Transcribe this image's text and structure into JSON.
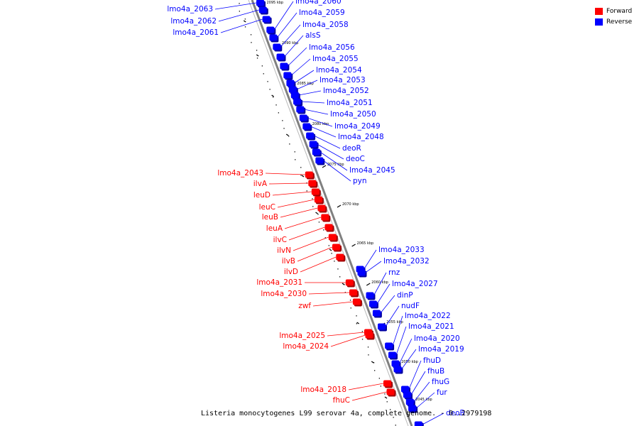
{
  "caption": "Listeria monocytogenes L99 serovar 4a, complete genome. - 0..2979198",
  "legend": [
    {
      "label": "Forward",
      "color": "#ff0000"
    },
    {
      "label": "Reverse",
      "color": "#0000ff"
    }
  ],
  "colors": {
    "forward": "#ff0000",
    "reverse": "#0000ff",
    "backbone": "#808080"
  },
  "ticks": [
    "2095 kbp",
    "2090 kbp",
    "2085 kbp",
    "2080 kbp",
    "2075 kbp",
    "2070 kbp",
    "2065 kbp",
    "2060 kbp",
    "2055 kbp",
    "2050 kbp",
    "2045 kbp"
  ],
  "genes": [
    {
      "label": "lmo4a_2063",
      "strand": "reverse"
    },
    {
      "label": "lmo4a_2062",
      "strand": "reverse"
    },
    {
      "label": "lmo4a_2061",
      "strand": "reverse"
    },
    {
      "label": "lmo4a_2060",
      "strand": "reverse"
    },
    {
      "label": "lmo4a_2059",
      "strand": "reverse"
    },
    {
      "label": "lmo4a_2058",
      "strand": "reverse"
    },
    {
      "label": "alsS",
      "strand": "reverse"
    },
    {
      "label": "lmo4a_2056",
      "strand": "reverse"
    },
    {
      "label": "lmo4a_2055",
      "strand": "reverse"
    },
    {
      "label": "lmo4a_2054",
      "strand": "reverse"
    },
    {
      "label": "lmo4a_2053",
      "strand": "reverse"
    },
    {
      "label": "lmo4a_2052",
      "strand": "reverse"
    },
    {
      "label": "lmo4a_2051",
      "strand": "reverse"
    },
    {
      "label": "lmo4a_2050",
      "strand": "reverse"
    },
    {
      "label": "lmo4a_2049",
      "strand": "reverse"
    },
    {
      "label": "lmo4a_2048",
      "strand": "reverse"
    },
    {
      "label": "deoR",
      "strand": "reverse"
    },
    {
      "label": "deoC",
      "strand": "reverse"
    },
    {
      "label": "lmo4a_2045",
      "strand": "reverse"
    },
    {
      "label": "pyn",
      "strand": "reverse"
    },
    {
      "label": "lmo4a_2043",
      "strand": "forward"
    },
    {
      "label": "ilvA",
      "strand": "forward"
    },
    {
      "label": "leuD",
      "strand": "forward"
    },
    {
      "label": "leuC",
      "strand": "forward"
    },
    {
      "label": "leuB",
      "strand": "forward"
    },
    {
      "label": "leuA",
      "strand": "forward"
    },
    {
      "label": "ilvC",
      "strand": "forward"
    },
    {
      "label": "ilvN",
      "strand": "forward"
    },
    {
      "label": "ilvB",
      "strand": "forward"
    },
    {
      "label": "ilvD",
      "strand": "forward"
    },
    {
      "label": "lmo4a_2031",
      "strand": "forward"
    },
    {
      "label": "lmo4a_2030",
      "strand": "forward"
    },
    {
      "label": "zwf",
      "strand": "forward"
    },
    {
      "label": "lmo4a_2033",
      "strand": "reverse"
    },
    {
      "label": "lmo4a_2032",
      "strand": "reverse"
    },
    {
      "label": "rnz",
      "strand": "reverse"
    },
    {
      "label": "lmo4a_2027",
      "strand": "reverse"
    },
    {
      "label": "dinP",
      "strand": "reverse"
    },
    {
      "label": "nudF",
      "strand": "reverse"
    },
    {
      "label": "lmo4a_2025",
      "strand": "forward"
    },
    {
      "label": "lmo4a_2024",
      "strand": "forward"
    },
    {
      "label": "lmo4a_2022",
      "strand": "reverse"
    },
    {
      "label": "lmo4a_2021",
      "strand": "reverse"
    },
    {
      "label": "lmo4a_2020",
      "strand": "reverse"
    },
    {
      "label": "lmo4a_2019",
      "strand": "reverse"
    },
    {
      "label": "fhuD",
      "strand": "reverse"
    },
    {
      "label": "fhuB",
      "strand": "reverse"
    },
    {
      "label": "fhuG",
      "strand": "reverse"
    },
    {
      "label": "fur",
      "strand": "reverse"
    },
    {
      "label": "lmo4a_2018",
      "strand": "forward"
    },
    {
      "label": "fhuC",
      "strand": "forward"
    },
    {
      "label": "deoB",
      "strand": "reverse"
    }
  ]
}
